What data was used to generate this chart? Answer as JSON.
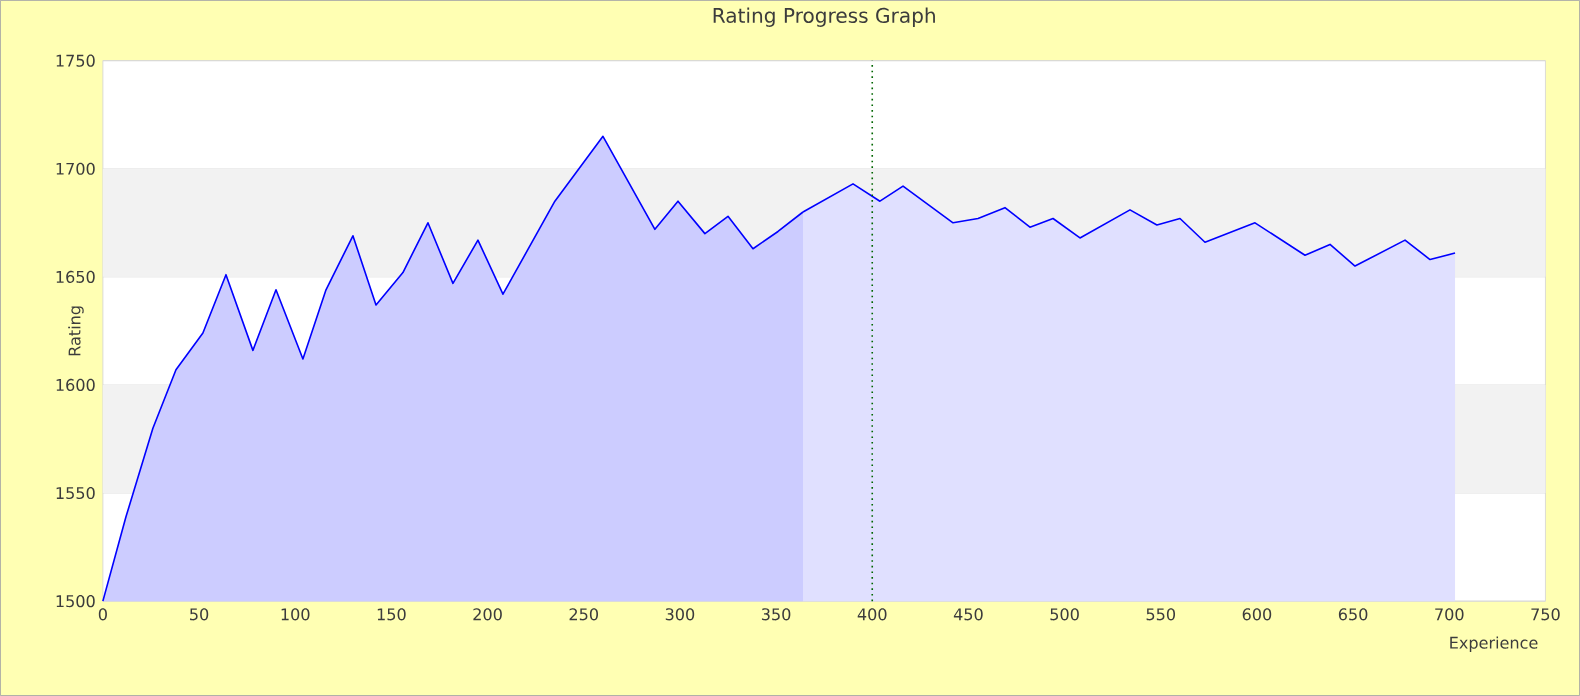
{
  "chart_data": {
    "type": "area",
    "title": "Rating Progress Graph",
    "xlabel": "Experience",
    "ylabel": "Rating",
    "xlim": [
      0,
      750
    ],
    "xticks": [
      0,
      50,
      100,
      150,
      200,
      250,
      300,
      350,
      400,
      450,
      500,
      550,
      600,
      650,
      700,
      750
    ],
    "ylim": [
      1500,
      1750
    ],
    "yticks": [
      1500,
      1550,
      1600,
      1650,
      1700,
      1750
    ],
    "grid": "y",
    "bands": [
      {
        "axis": "y",
        "from": 1550,
        "to": 1600,
        "color": "#f2f2f2"
      },
      {
        "axis": "y",
        "from": 1650,
        "to": 1700,
        "color": "#f2f2f2"
      }
    ],
    "ref_lines": [
      {
        "axis": "x",
        "value": 400,
        "color": "#006600",
        "line_style": "dotted"
      }
    ],
    "series": [
      {
        "color": "#ccccff",
        "x": [
          0,
          12,
          26,
          38,
          52,
          64,
          78,
          90,
          104,
          116,
          130,
          142,
          156,
          169,
          182,
          195,
          208,
          235,
          260,
          287,
          299,
          313,
          325,
          338,
          351,
          364
        ],
        "values": [
          1500,
          1539,
          1580,
          1607,
          1624,
          1651,
          1616,
          1644,
          1612,
          1644,
          1669,
          1637,
          1652,
          1675,
          1647,
          1667,
          1642,
          1685,
          1715,
          1672,
          1685,
          1670,
          1678,
          1663,
          1671,
          1680
        ]
      },
      {
        "color": "#e0e0ff",
        "x": [
          364,
          390,
          404,
          416,
          442,
          455,
          469,
          482,
          494,
          508,
          534,
          548,
          560,
          573,
          599,
          625,
          638,
          651,
          677,
          690,
          703
        ],
        "values": [
          1680,
          1693,
          1685,
          1692,
          1675,
          1677,
          1682,
          1673,
          1677,
          1668,
          1681,
          1674,
          1677,
          1666,
          1675,
          1660,
          1665,
          1655,
          1667,
          1658,
          1661
        ]
      }
    ]
  }
}
